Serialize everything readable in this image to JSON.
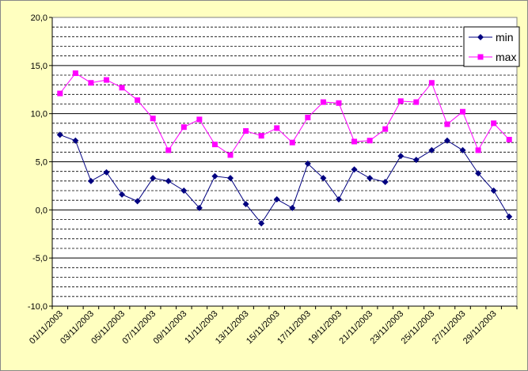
{
  "chart_data": {
    "type": "line",
    "categories": [
      "01/11/2003",
      null,
      "03/11/2003",
      null,
      "05/11/2003",
      null,
      "07/11/2003",
      null,
      "09/11/2003",
      null,
      "11/11/2003",
      null,
      "13/11/2003",
      null,
      "15/11/2003",
      null,
      "17/11/2003",
      null,
      "19/11/2003",
      null,
      "21/11/2003",
      null,
      "23/11/2003",
      null,
      "25/11/2003",
      null,
      "27/11/2003",
      null,
      "29/11/2003",
      null
    ],
    "series": [
      {
        "name": "min",
        "color": "#000080",
        "marker": "diamond",
        "values": [
          7.8,
          7.2,
          3.0,
          3.9,
          1.6,
          0.9,
          3.3,
          3.0,
          2.0,
          0.2,
          3.5,
          3.3,
          0.6,
          -1.4,
          1.1,
          0.2,
          4.8,
          3.3,
          1.1,
          4.2,
          3.3,
          2.9,
          5.6,
          5.2,
          6.2,
          7.2,
          6.2,
          3.8,
          2.0,
          -0.7
        ]
      },
      {
        "name": "max",
        "color": "#ff00ff",
        "marker": "square",
        "values": [
          12.1,
          14.2,
          13.2,
          13.5,
          12.7,
          11.4,
          9.5,
          6.2,
          8.6,
          9.4,
          6.8,
          5.7,
          8.2,
          7.7,
          8.5,
          7.0,
          9.6,
          11.2,
          11.1,
          7.1,
          7.2,
          8.4,
          11.3,
          11.2,
          13.2,
          8.9,
          10.2,
          6.2,
          9.0,
          7.3
        ]
      }
    ],
    "ylim": [
      -10,
      20
    ],
    "yticks": [
      {
        "value": -10,
        "label": "-10,0"
      },
      {
        "value": -5,
        "label": "-5,0"
      },
      {
        "value": 0,
        "label": "0,0"
      },
      {
        "value": 5,
        "label": "5,0"
      },
      {
        "value": 10,
        "label": "10,0"
      },
      {
        "value": 15,
        "label": "15,0"
      },
      {
        "value": 20,
        "label": "20,0"
      }
    ],
    "yminor": [
      -9,
      -8,
      -7,
      -6,
      -4,
      -3,
      -2,
      -1,
      1,
      2,
      3,
      4,
      6,
      7,
      8,
      9,
      11,
      12,
      13,
      14,
      16,
      17,
      18,
      19
    ],
    "grid": true,
    "legend": "top-right"
  }
}
